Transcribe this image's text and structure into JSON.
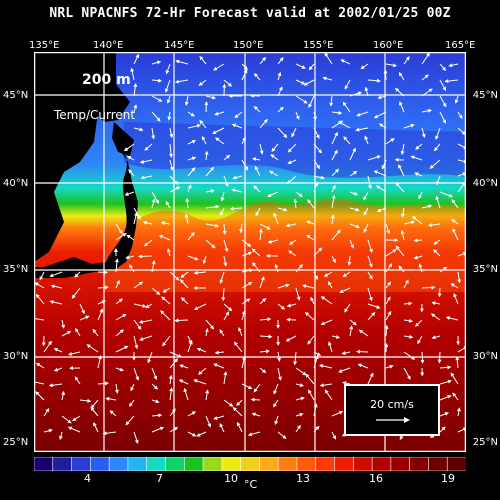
{
  "title": "NRL NPACNFS 72-Hr Forecast valid at 2002/01/25 00Z",
  "depth_label": "200  m",
  "field_label": "Temp/Current",
  "longitude_labels": [
    "135°E",
    "140°E",
    "145°E",
    "150°E",
    "155°E",
    "160°E",
    "165°E"
  ],
  "latitude_labels": [
    "45°N",
    "40°N",
    "35°N",
    "30°N",
    "25°N"
  ],
  "scale_vector": {
    "label": "20 cm/s",
    "value_cm_s": 20
  },
  "colorbar": {
    "unit": "°C",
    "tick_labels": [
      "4",
      "7",
      "10",
      "13",
      "16",
      "19"
    ],
    "colors": [
      "#1a0070",
      "#1f1d9e",
      "#2a3bd6",
      "#2b5cf2",
      "#2f86f6",
      "#22b6ee",
      "#15d9c4",
      "#12d06a",
      "#20c020",
      "#9ad81a",
      "#ecec13",
      "#f2cf1c",
      "#ffaa1a",
      "#ff7d12",
      "#ff5a0a",
      "#ff3808",
      "#ec1f00",
      "#cf0c00",
      "#b30000",
      "#9a0000",
      "#830000",
      "#6f0000",
      "#5c0000"
    ]
  },
  "map_colors": {
    "land": "#000000",
    "gridline": "#ffffff",
    "vector": "#ffffff"
  }
}
